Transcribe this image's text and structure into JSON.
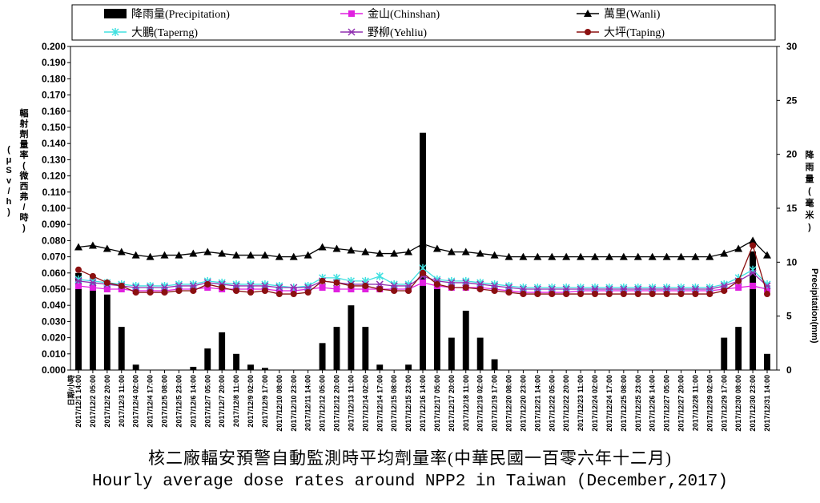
{
  "caption_zh": "核二廠輻安預警自動監測時平均劑量率(中華民國一百零六年十二月)",
  "caption_en": "Hourly average dose rates around NPP2 in Taiwan (December,2017)",
  "chart_data": {
    "type": "line",
    "title": "",
    "ylabel_left": "輻射劑量率(微西弗/時)(μSv/h)",
    "ylabel_right": "降雨量(毫米) Precipitation(mm)",
    "ylim_left": [
      0,
      0.2
    ],
    "ylim_right": [
      0,
      30
    ],
    "yticks_left": [
      "0.000",
      "0.010",
      "0.020",
      "0.030",
      "0.040",
      "0.050",
      "0.060",
      "0.070",
      "0.080",
      "0.090",
      "0.100",
      "0.110",
      "0.120",
      "0.130",
      "0.140",
      "0.150",
      "0.160",
      "0.170",
      "0.180",
      "0.190",
      "0.200"
    ],
    "yticks_right": [
      "0",
      "5",
      "10",
      "15",
      "20",
      "25",
      "30"
    ],
    "xlabel_first": "日期/小時",
    "x": [
      "2017/12/1 14:00",
      "2017/12/2 05:00",
      "2017/12/2 20:00",
      "2017/12/3 11:00",
      "2017/12/4 02:00",
      "2017/12/4 17:00",
      "2017/12/5 08:00",
      "2017/12/5 23:00",
      "2017/12/6 14:00",
      "2017/12/7 05:00",
      "2017/12/7 20:00",
      "2017/12/8 11:00",
      "2017/12/9 02:00",
      "2017/12/9 17:00",
      "2017/12/10 08:00",
      "2017/12/10 23:00",
      "2017/12/11 14:00",
      "2017/12/12 05:00",
      "2017/12/12 20:00",
      "2017/12/13 11:00",
      "2017/12/14 02:00",
      "2017/12/14 17:00",
      "2017/12/15 08:00",
      "2017/12/15 23:00",
      "2017/12/16 14:00",
      "2017/12/17 05:00",
      "2017/12/17 20:00",
      "2017/12/18 11:00",
      "2017/12/19 02:00",
      "2017/12/19 17:00",
      "2017/12/20 08:00",
      "2017/12/20 23:00",
      "2017/12/21 14:00",
      "2017/12/22 05:00",
      "2017/12/22 20:00",
      "2017/12/23 11:00",
      "2017/12/24 02:00",
      "2017/12/24 17:00",
      "2017/12/25 08:00",
      "2017/12/25 23:00",
      "2017/12/26 14:00",
      "2017/12/27 05:00",
      "2017/12/27 20:00",
      "2017/12/28 11:00",
      "2017/12/29 02:00",
      "2017/12/29 17:00",
      "2017/12/30 08:00",
      "2017/12/30 23:00",
      "2017/12/31 14:00"
    ],
    "legend_position": "top",
    "grid": false,
    "series": [
      {
        "name": "降雨量(Precipitation)",
        "kind": "bar",
        "axis": "right",
        "color": "#000000",
        "values": [
          9,
          8,
          7,
          4,
          0.5,
          0,
          0,
          0,
          0.3,
          2,
          3.5,
          1.5,
          0.5,
          0.2,
          0,
          0,
          0,
          2.5,
          4,
          6,
          4,
          0.5,
          0,
          0.5,
          22,
          8,
          3,
          5.5,
          3,
          1,
          0,
          0,
          0,
          0,
          0,
          0,
          0,
          0,
          0,
          0,
          0,
          0,
          0,
          0,
          0,
          3,
          4,
          11,
          1.5
        ]
      },
      {
        "name": "金山(Chinshan)",
        "kind": "line",
        "axis": "left",
        "color": "#e020e0",
        "marker": "square",
        "values": [
          0.052,
          0.051,
          0.05,
          0.05,
          0.049,
          0.049,
          0.049,
          0.05,
          0.05,
          0.051,
          0.05,
          0.05,
          0.05,
          0.05,
          0.049,
          0.049,
          0.05,
          0.051,
          0.05,
          0.05,
          0.05,
          0.05,
          0.05,
          0.05,
          0.054,
          0.052,
          0.051,
          0.051,
          0.051,
          0.05,
          0.049,
          0.048,
          0.048,
          0.048,
          0.048,
          0.049,
          0.049,
          0.049,
          0.049,
          0.049,
          0.049,
          0.049,
          0.049,
          0.049,
          0.049,
          0.05,
          0.051,
          0.052,
          0.05
        ]
      },
      {
        "name": "萬里(Wanli)",
        "kind": "line",
        "axis": "left",
        "color": "#000000",
        "marker": "triangle",
        "values": [
          0.076,
          0.077,
          0.075,
          0.073,
          0.071,
          0.07,
          0.071,
          0.071,
          0.072,
          0.073,
          0.072,
          0.071,
          0.071,
          0.071,
          0.07,
          0.07,
          0.071,
          0.076,
          0.075,
          0.074,
          0.073,
          0.072,
          0.072,
          0.073,
          0.078,
          0.075,
          0.073,
          0.073,
          0.072,
          0.071,
          0.07,
          0.07,
          0.07,
          0.07,
          0.07,
          0.07,
          0.07,
          0.07,
          0.07,
          0.07,
          0.07,
          0.07,
          0.07,
          0.07,
          0.07,
          0.072,
          0.075,
          0.08,
          0.071
        ]
      },
      {
        "name": "大鵬(Taperng)",
        "kind": "line",
        "axis": "left",
        "color": "#40e0e0",
        "marker": "star",
        "values": [
          0.056,
          0.055,
          0.054,
          0.053,
          0.052,
          0.052,
          0.052,
          0.053,
          0.053,
          0.055,
          0.054,
          0.053,
          0.053,
          0.053,
          0.052,
          0.051,
          0.052,
          0.057,
          0.057,
          0.055,
          0.055,
          0.058,
          0.053,
          0.053,
          0.063,
          0.056,
          0.055,
          0.055,
          0.054,
          0.053,
          0.052,
          0.051,
          0.051,
          0.051,
          0.051,
          0.051,
          0.051,
          0.051,
          0.051,
          0.051,
          0.051,
          0.051,
          0.051,
          0.051,
          0.051,
          0.053,
          0.057,
          0.062,
          0.053
        ]
      },
      {
        "name": "野柳(Yehliu)",
        "kind": "line",
        "axis": "left",
        "color": "#9030b0",
        "marker": "asterisk",
        "values": [
          0.055,
          0.054,
          0.053,
          0.052,
          0.051,
          0.051,
          0.051,
          0.052,
          0.052,
          0.054,
          0.053,
          0.052,
          0.052,
          0.052,
          0.051,
          0.051,
          0.051,
          0.055,
          0.054,
          0.053,
          0.053,
          0.053,
          0.052,
          0.052,
          0.058,
          0.055,
          0.054,
          0.054,
          0.053,
          0.052,
          0.051,
          0.05,
          0.05,
          0.05,
          0.05,
          0.05,
          0.05,
          0.05,
          0.05,
          0.05,
          0.05,
          0.05,
          0.05,
          0.05,
          0.05,
          0.052,
          0.055,
          0.06,
          0.052
        ]
      },
      {
        "name": "大坪(Taping)",
        "kind": "line",
        "axis": "left",
        "color": "#8b1010",
        "marker": "circle",
        "values": [
          0.062,
          0.058,
          0.054,
          0.052,
          0.048,
          0.048,
          0.048,
          0.049,
          0.049,
          0.053,
          0.051,
          0.049,
          0.048,
          0.049,
          0.047,
          0.047,
          0.048,
          0.055,
          0.054,
          0.052,
          0.052,
          0.05,
          0.049,
          0.049,
          0.06,
          0.053,
          0.051,
          0.051,
          0.05,
          0.049,
          0.048,
          0.047,
          0.047,
          0.047,
          0.047,
          0.047,
          0.047,
          0.047,
          0.047,
          0.047,
          0.047,
          0.047,
          0.047,
          0.047,
          0.047,
          0.049,
          0.055,
          0.077,
          0.047
        ]
      }
    ],
    "peaks": {
      "precipitation_max": 22,
      "wanli_max": 0.09,
      "taperng_max": 0.086,
      "taping_max": 0.083
    }
  }
}
